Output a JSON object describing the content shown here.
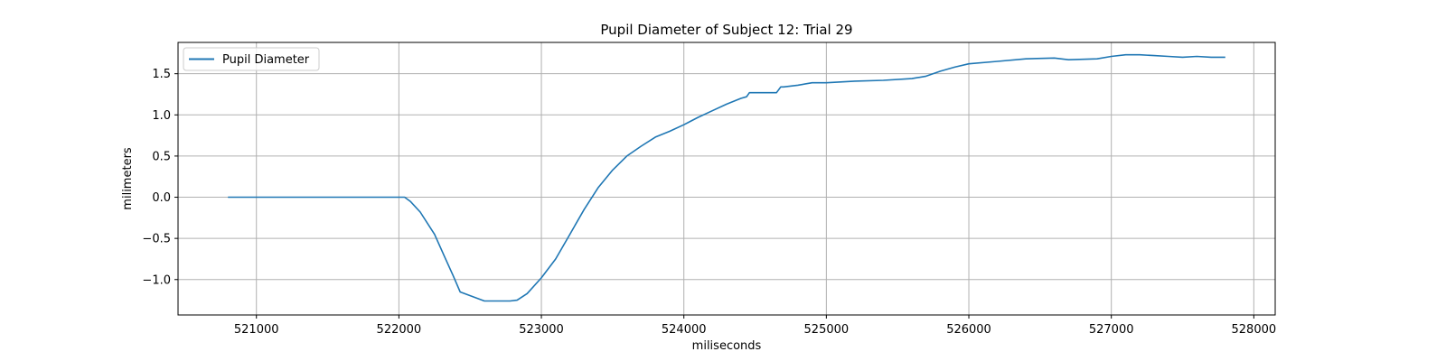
{
  "chart_data": {
    "type": "line",
    "title": "Pupil Diameter of Subject 12: Trial 29",
    "xlabel": "miliseconds",
    "ylabel": "milimeters",
    "xlim": [
      520450,
      528150
    ],
    "ylim": [
      -1.43,
      1.88
    ],
    "xticks": [
      521000,
      522000,
      523000,
      524000,
      525000,
      526000,
      527000,
      528000
    ],
    "yticks": [
      -1.0,
      -0.5,
      0.0,
      0.5,
      1.0,
      1.5
    ],
    "grid": true,
    "legend_position": "upper left",
    "colors": {
      "line": "#1f77b4",
      "grid": "#b0b0b0"
    },
    "series": [
      {
        "name": "Pupil Diameter",
        "x": [
          520800,
          521000,
          521500,
          522000,
          522040,
          522080,
          522150,
          522250,
          522320,
          522380,
          522430,
          522600,
          522780,
          522830,
          522900,
          523000,
          523100,
          523200,
          523300,
          523400,
          523500,
          523600,
          523700,
          523800,
          523900,
          524000,
          524100,
          524200,
          524300,
          524400,
          524440,
          524460,
          524500,
          524600,
          524650,
          524680,
          524700,
          524800,
          524900,
          525000,
          525200,
          525400,
          525600,
          525700,
          525800,
          525900,
          526000,
          526200,
          526400,
          526600,
          526700,
          526900,
          527000,
          527100,
          527200,
          527300,
          527400,
          527500,
          527600,
          527700,
          527800
        ],
        "y": [
          0.0,
          0.0,
          0.0,
          0.0,
          0.0,
          -0.05,
          -0.18,
          -0.45,
          -0.72,
          -0.95,
          -1.15,
          -1.26,
          -1.26,
          -1.25,
          -1.17,
          -0.98,
          -0.75,
          -0.45,
          -0.15,
          0.12,
          0.33,
          0.5,
          0.62,
          0.73,
          0.8,
          0.88,
          0.97,
          1.05,
          1.13,
          1.2,
          1.22,
          1.27,
          1.27,
          1.27,
          1.27,
          1.34,
          1.34,
          1.36,
          1.39,
          1.39,
          1.41,
          1.42,
          1.44,
          1.47,
          1.53,
          1.58,
          1.62,
          1.65,
          1.68,
          1.69,
          1.67,
          1.68,
          1.71,
          1.73,
          1.73,
          1.72,
          1.71,
          1.7,
          1.71,
          1.7,
          1.7
        ]
      }
    ]
  }
}
